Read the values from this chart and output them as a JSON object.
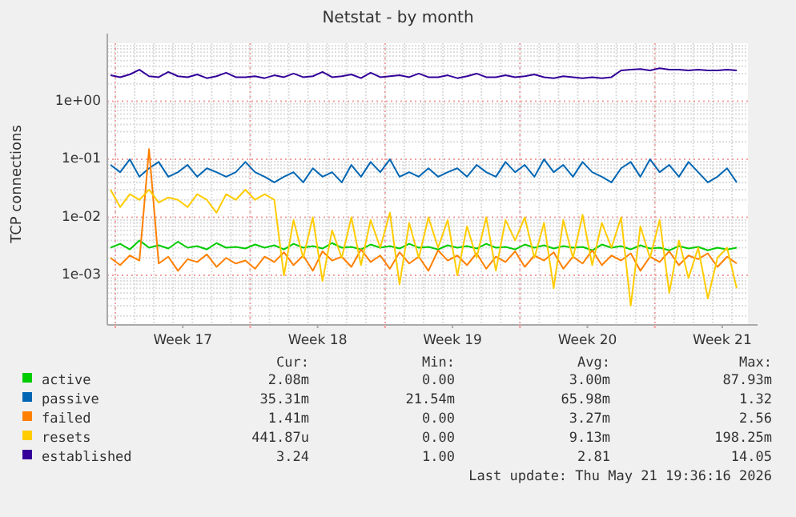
{
  "chart_data": {
    "type": "line",
    "title": "Netstat - by month",
    "ylabel": "TCP connections",
    "log": "y",
    "grid": true,
    "legend": "bottom",
    "xlim": [
      "2026-04-19T14:00",
      "2026-05-22T20:00"
    ],
    "xticks": [
      {
        "value": "2026-04-20",
        "label": null
      },
      {
        "value": "2026-04-23T12:00",
        "label": "Week 17"
      },
      {
        "value": "2026-04-27",
        "label": null
      },
      {
        "value": "2026-04-30T12:00",
        "label": "Week 18"
      },
      {
        "value": "2026-05-04",
        "label": null
      },
      {
        "value": "2026-05-07T12:00",
        "label": "Week 19"
      },
      {
        "value": "2026-05-11",
        "label": null
      },
      {
        "value": "2026-05-14T12:00",
        "label": "Week 20"
      },
      {
        "value": "2026-05-18",
        "label": null
      },
      {
        "value": "2026-05-21T12:00",
        "label": "Week 21"
      }
    ],
    "ylim": [
      0.00014,
      10
    ],
    "yticks": [
      {
        "value": 0.001,
        "label": "1e-03"
      },
      {
        "value": 0.01,
        "label": "1e-02"
      },
      {
        "value": 0.1,
        "label": "1e-01"
      },
      {
        "value": 1,
        "label": "1e+00"
      }
    ],
    "x": [
      "2026-04-19T18:00",
      "2026-04-20T06:00",
      "2026-04-20T18:00",
      "2026-04-21T06:00",
      "2026-04-21T18:00",
      "2026-04-22T06:00",
      "2026-04-22T18:00",
      "2026-04-23T06:00",
      "2026-04-23T18:00",
      "2026-04-24T06:00",
      "2026-04-24T18:00",
      "2026-04-25T06:00",
      "2026-04-25T18:00",
      "2026-04-26T06:00",
      "2026-04-26T18:00",
      "2026-04-27T06:00",
      "2026-04-27T18:00",
      "2026-04-28T06:00",
      "2026-04-28T18:00",
      "2026-04-29T06:00",
      "2026-04-29T18:00",
      "2026-04-30T06:00",
      "2026-04-30T18:00",
      "2026-05-01T06:00",
      "2026-05-01T18:00",
      "2026-05-02T06:00",
      "2026-05-02T18:00",
      "2026-05-03T06:00",
      "2026-05-03T18:00",
      "2026-05-04T06:00",
      "2026-05-04T18:00",
      "2026-05-05T06:00",
      "2026-05-05T18:00",
      "2026-05-06T06:00",
      "2026-05-06T18:00",
      "2026-05-07T06:00",
      "2026-05-07T18:00",
      "2026-05-08T06:00",
      "2026-05-08T18:00",
      "2026-05-09T06:00",
      "2026-05-09T18:00",
      "2026-05-10T06:00",
      "2026-05-10T18:00",
      "2026-05-11T06:00",
      "2026-05-11T18:00",
      "2026-05-12T06:00",
      "2026-05-12T18:00",
      "2026-05-13T06:00",
      "2026-05-13T18:00",
      "2026-05-14T06:00",
      "2026-05-14T18:00",
      "2026-05-15T06:00",
      "2026-05-15T18:00",
      "2026-05-16T06:00",
      "2026-05-16T18:00",
      "2026-05-17T06:00",
      "2026-05-17T18:00",
      "2026-05-18T06:00",
      "2026-05-18T18:00",
      "2026-05-19T06:00",
      "2026-05-19T18:00",
      "2026-05-20T06:00",
      "2026-05-20T18:00",
      "2026-05-21T06:00",
      "2026-05-21T18:00",
      "2026-05-22T06:00"
    ],
    "series": [
      {
        "name": "active",
        "color": "#00cc00",
        "values": [
          0.003,
          0.0035,
          0.0028,
          0.004,
          0.003,
          0.0033,
          0.0029,
          0.0038,
          0.003,
          0.0032,
          0.0028,
          0.0036,
          0.003,
          0.0031,
          0.0029,
          0.0034,
          0.003,
          0.0033,
          0.0028,
          0.0035,
          0.003,
          0.0032,
          0.0029,
          0.0036,
          0.003,
          0.0031,
          0.0028,
          0.0034,
          0.003,
          0.0032,
          0.0029,
          0.0035,
          0.003,
          0.0031,
          0.0028,
          0.0033,
          0.003,
          0.0032,
          0.0029,
          0.0035,
          0.003,
          0.0031,
          0.0028,
          0.0034,
          0.003,
          0.0033,
          0.0029,
          0.0032,
          0.003,
          0.0031,
          0.0027,
          0.0034,
          0.003,
          0.0032,
          0.0028,
          0.0033,
          0.0029,
          0.003,
          0.0027,
          0.0032,
          0.0029,
          0.0031,
          0.0027,
          0.003,
          0.0028,
          0.003
        ]
      },
      {
        "name": "passive",
        "color": "#0066b3",
        "values": [
          0.08,
          0.06,
          0.1,
          0.05,
          0.07,
          0.09,
          0.05,
          0.06,
          0.08,
          0.05,
          0.07,
          0.06,
          0.05,
          0.06,
          0.09,
          0.06,
          0.05,
          0.04,
          0.05,
          0.06,
          0.04,
          0.07,
          0.05,
          0.06,
          0.04,
          0.08,
          0.05,
          0.09,
          0.06,
          0.1,
          0.05,
          0.06,
          0.05,
          0.07,
          0.05,
          0.06,
          0.07,
          0.05,
          0.08,
          0.06,
          0.05,
          0.09,
          0.06,
          0.08,
          0.05,
          0.1,
          0.06,
          0.08,
          0.05,
          0.09,
          0.06,
          0.05,
          0.04,
          0.07,
          0.09,
          0.05,
          0.1,
          0.06,
          0.08,
          0.05,
          0.09,
          0.06,
          0.04,
          0.05,
          0.07,
          0.04
        ]
      },
      {
        "name": "failed",
        "color": "#ff8000",
        "values": [
          0.002,
          0.0015,
          0.0022,
          0.0018,
          0.15,
          0.0016,
          0.0021,
          0.0012,
          0.0019,
          0.0017,
          0.0023,
          0.0014,
          0.002,
          0.0016,
          0.0018,
          0.0013,
          0.0021,
          0.0017,
          0.0025,
          0.0015,
          0.0022,
          0.0012,
          0.0026,
          0.0018,
          0.0021,
          0.0014,
          0.0028,
          0.0017,
          0.0022,
          0.0013,
          0.0025,
          0.0016,
          0.0021,
          0.0012,
          0.0027,
          0.0018,
          0.0022,
          0.0015,
          0.0024,
          0.0013,
          0.0021,
          0.0017,
          0.0026,
          0.0014,
          0.0022,
          0.0018,
          0.0025,
          0.0013,
          0.0021,
          0.0016,
          0.0027,
          0.0015,
          0.0022,
          0.0018,
          0.0024,
          0.0012,
          0.0021,
          0.0017,
          0.0026,
          0.0015,
          0.0022,
          0.0019,
          0.0024,
          0.0014,
          0.0021,
          0.0016
        ]
      },
      {
        "name": "resets",
        "color": "#ffcc00",
        "values": [
          0.03,
          0.015,
          0.025,
          0.02,
          0.03,
          0.018,
          0.022,
          0.02,
          0.015,
          0.025,
          0.02,
          0.012,
          0.025,
          0.02,
          0.03,
          0.02,
          0.025,
          0.02,
          0.001,
          0.009,
          0.002,
          0.01,
          0.0008,
          0.006,
          0.002,
          0.01,
          0.0015,
          0.009,
          0.003,
          0.012,
          0.0007,
          0.008,
          0.002,
          0.01,
          0.003,
          0.009,
          0.001,
          0.007,
          0.002,
          0.01,
          0.0012,
          0.009,
          0.004,
          0.01,
          0.002,
          0.008,
          0.0006,
          0.009,
          0.002,
          0.011,
          0.0015,
          0.008,
          0.003,
          0.01,
          0.0003,
          0.007,
          0.002,
          0.009,
          0.0005,
          0.004,
          0.0009,
          0.003,
          0.0004,
          0.002,
          0.003,
          0.0006
        ]
      },
      {
        "name": "established",
        "color": "#330099",
        "values": [
          2.8,
          2.6,
          2.9,
          3.5,
          2.7,
          2.6,
          3.2,
          2.7,
          2.6,
          2.9,
          2.5,
          2.7,
          3.1,
          2.6,
          2.6,
          2.7,
          2.5,
          2.8,
          2.6,
          3.0,
          2.6,
          2.7,
          3.2,
          2.6,
          2.7,
          2.9,
          2.5,
          3.1,
          2.6,
          2.7,
          2.8,
          2.6,
          3.0,
          2.6,
          2.6,
          2.8,
          2.5,
          2.7,
          3.0,
          2.6,
          2.6,
          2.8,
          2.6,
          2.7,
          2.9,
          2.6,
          2.5,
          2.7,
          2.6,
          2.5,
          2.6,
          2.5,
          2.6,
          3.4,
          3.5,
          3.6,
          3.4,
          3.7,
          3.5,
          3.5,
          3.4,
          3.5,
          3.4,
          3.4,
          3.5,
          3.4
        ]
      }
    ],
    "annotations": [
      "Cur:",
      "Min:",
      "Avg:",
      "Max:",
      "2.08m",
      "0.00",
      "3.00m",
      "87.93m",
      "35.31m",
      "21.54m",
      "65.98m",
      "1.32",
      "1.41m",
      "0.00",
      "3.27m",
      "2.56",
      "441.87u",
      "0.00",
      "9.13m",
      "198.25m",
      "3.24",
      "1.00",
      "2.81",
      "14.05",
      "Last update: Thu May 21 19:36:16 2026"
    ]
  }
}
